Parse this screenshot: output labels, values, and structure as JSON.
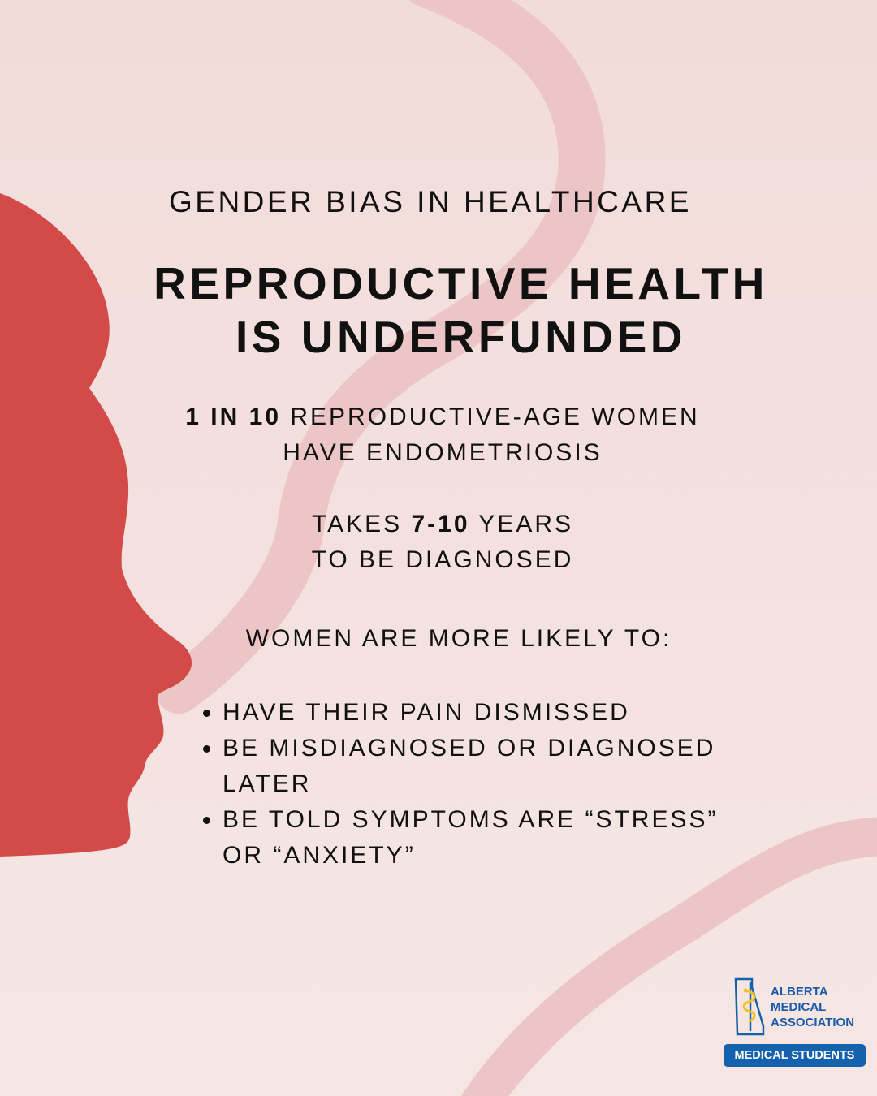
{
  "colors": {
    "background_top": "#f2dcda",
    "background_bottom": "#f5e6e4",
    "ribbon": "#ecc6c6",
    "silhouette": "#d24b48",
    "text": "#111111",
    "brand_blue": "#1462ad",
    "brand_yellow": "#f3c21d"
  },
  "poster": {
    "subtitle": "GENDER BIAS IN HEALTHCARE",
    "headline_line1": "REPRODUCTIVE HEALTH",
    "headline_line2": "IS UNDERFUNDED",
    "stat1": {
      "bold": "1 IN 10",
      "text_a": " REPRODUCTIVE-AGE WOMEN",
      "text_b": "HAVE ENDOMETRIOSIS"
    },
    "stat2": {
      "prefix": "TAKES ",
      "bold": "7-10",
      "suffix": " YEARS",
      "line2": "TO BE DIAGNOSED"
    },
    "likely_intro": "WOMEN ARE MORE LIKELY TO:",
    "bullets": [
      " HAVE THEIR PAIN DISMISSED",
      "BE MISDIAGNOSED OR DIAGNOSED LATER",
      " BE TOLD SYMPTOMS ARE “STRESS” OR “ANXIETY”"
    ]
  },
  "logo": {
    "line1": "ALBERTA",
    "line2": "MEDICAL",
    "line3": "ASSOCIATION",
    "badge": "MEDICAL STUDENTS"
  }
}
